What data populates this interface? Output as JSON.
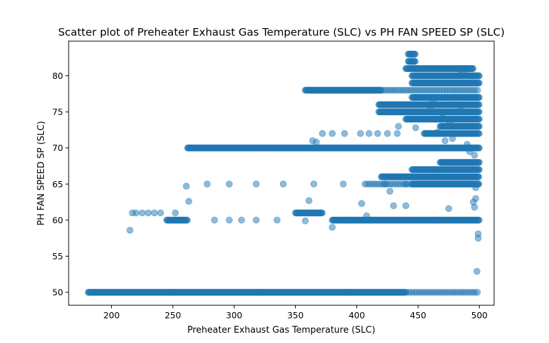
{
  "chart_data": {
    "type": "scatter",
    "title": "Scatter plot of Preheater Exhaust Gas Temperature (SLC) vs PH FAN SPEED SP (SLC)",
    "xlabel": "Preheater Exhaust Gas Temperature (SLC)",
    "ylabel": "PH FAN SPEED SP (SLC)",
    "xlim": [
      165,
      512
    ],
    "ylim": [
      48.2,
      84.8
    ],
    "xticks": [
      200,
      250,
      300,
      350,
      400,
      450,
      500
    ],
    "yticks": [
      50,
      55,
      60,
      65,
      70,
      75,
      80
    ],
    "grid": false,
    "point_color": "#1f77b4",
    "point_alpha": 0.5,
    "bands": [
      {
        "y": 50,
        "x_from": 181,
        "x_to": 500,
        "dense_to": 440
      },
      {
        "y": 60,
        "x_from": 245,
        "x_to": 262
      },
      {
        "y": 60,
        "x_from": 380,
        "x_to": 500
      },
      {
        "y": 61,
        "x_from": 350,
        "x_to": 372
      },
      {
        "y": 65,
        "x_from": 405,
        "x_to": 500,
        "dense_from": 445
      },
      {
        "y": 66,
        "x_from": 420,
        "x_to": 500
      },
      {
        "y": 67,
        "x_from": 445,
        "x_to": 500
      },
      {
        "y": 68,
        "x_from": 468,
        "x_to": 500
      },
      {
        "y": 70,
        "x_from": 262,
        "x_to": 500
      },
      {
        "y": 72,
        "x_from": 455,
        "x_to": 500
      },
      {
        "y": 73,
        "x_from": 468,
        "x_to": 500
      },
      {
        "y": 74,
        "x_from": 440,
        "x_to": 500
      },
      {
        "y": 75,
        "x_from": 418,
        "x_to": 500
      },
      {
        "y": 76,
        "x_from": 418,
        "x_to": 500
      },
      {
        "y": 77,
        "x_from": 445,
        "x_to": 500
      },
      {
        "y": 78,
        "x_from": 358,
        "x_to": 500,
        "dense_to": 420
      },
      {
        "y": 79,
        "x_from": 445,
        "x_to": 500
      },
      {
        "y": 80,
        "x_from": 445,
        "x_to": 500
      },
      {
        "y": 81,
        "x_from": 440,
        "x_to": 495
      },
      {
        "y": 82,
        "x_from": 442,
        "x_to": 448
      },
      {
        "y": 83,
        "x_from": 442,
        "x_to": 448
      }
    ],
    "points": [
      [
        215,
        58.6
      ],
      [
        217,
        61
      ],
      [
        220,
        61
      ],
      [
        225,
        61
      ],
      [
        230,
        61
      ],
      [
        235,
        61
      ],
      [
        240,
        61
      ],
      [
        252,
        61
      ],
      [
        261,
        64.7
      ],
      [
        263,
        62.6
      ],
      [
        278,
        65
      ],
      [
        296,
        65
      ],
      [
        318,
        65
      ],
      [
        340,
        65
      ],
      [
        365,
        65
      ],
      [
        389,
        65
      ],
      [
        284,
        60
      ],
      [
        296,
        60
      ],
      [
        306,
        60
      ],
      [
        318,
        60
      ],
      [
        335,
        60
      ],
      [
        358,
        59.9
      ],
      [
        361,
        62.7
      ],
      [
        380,
        59
      ],
      [
        364,
        71
      ],
      [
        367,
        70.8
      ],
      [
        372,
        72
      ],
      [
        380,
        72
      ],
      [
        390,
        72
      ],
      [
        403,
        72
      ],
      [
        410,
        72
      ],
      [
        417,
        72
      ],
      [
        425,
        72
      ],
      [
        433,
        72
      ],
      [
        427,
        64
      ],
      [
        434,
        73
      ],
      [
        423,
        65
      ],
      [
        440,
        65
      ],
      [
        404,
        62.3
      ],
      [
        408,
        60.6
      ],
      [
        430,
        62
      ],
      [
        440,
        62
      ],
      [
        448,
        72.8
      ],
      [
        460,
        75.5
      ],
      [
        475,
        61.6
      ],
      [
        472,
        71
      ],
      [
        478,
        71.3
      ],
      [
        484,
        80.9
      ],
      [
        488,
        80.5
      ],
      [
        490,
        70.5
      ],
      [
        492,
        69.5
      ],
      [
        495,
        62.5
      ],
      [
        496,
        61.8
      ],
      [
        497,
        63
      ],
      [
        497,
        64.5
      ],
      [
        499,
        57.5
      ],
      [
        499,
        58.1
      ],
      [
        498,
        52.9
      ],
      [
        496,
        69
      ],
      [
        494,
        67
      ],
      [
        450,
        81
      ],
      [
        455,
        79
      ],
      [
        462,
        76.5
      ],
      [
        470,
        74.2
      ],
      [
        480,
        76
      ],
      [
        485,
        75.5
      ],
      [
        476,
        73.5
      ],
      [
        466,
        72.2
      ]
    ]
  }
}
